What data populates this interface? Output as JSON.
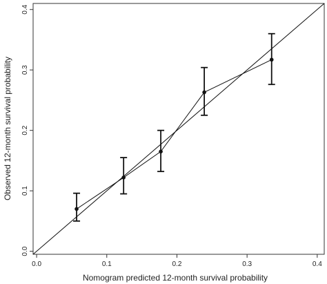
{
  "chart_data": {
    "type": "scatter",
    "title": "",
    "xlabel": "Nomogram predicted 12-month survival probability",
    "ylabel": "Observed 12-month survival probability",
    "xlim": [
      -0.005,
      0.41
    ],
    "ylim": [
      -0.005,
      0.41
    ],
    "x_ticks": [
      {
        "value": 0.0,
        "label": "0.0"
      },
      {
        "value": 0.1,
        "label": "0.1"
      },
      {
        "value": 0.2,
        "label": "0.2"
      },
      {
        "value": 0.3,
        "label": "0.3"
      },
      {
        "value": 0.4,
        "label": "0.4"
      }
    ],
    "y_ticks": [
      {
        "value": 0.0,
        "label": "0.0"
      },
      {
        "value": 0.1,
        "label": "0.1"
      },
      {
        "value": 0.2,
        "label": "0.2"
      },
      {
        "value": 0.3,
        "label": "0.3"
      },
      {
        "value": 0.4,
        "label": "0.4"
      }
    ],
    "grid": false,
    "reference_line": {
      "from": [
        -0.005,
        -0.005
      ],
      "to": [
        0.41,
        0.41
      ]
    },
    "series": [
      {
        "points": [
          {
            "x": 0.057,
            "y": 0.07,
            "lower": 0.05,
            "upper": 0.096
          },
          {
            "x": 0.124,
            "y": 0.122,
            "lower": 0.095,
            "upper": 0.155
          },
          {
            "x": 0.177,
            "y": 0.165,
            "lower": 0.132,
            "upper": 0.2
          },
          {
            "x": 0.239,
            "y": 0.263,
            "lower": 0.225,
            "upper": 0.304
          },
          {
            "x": 0.335,
            "y": 0.317,
            "lower": 0.276,
            "upper": 0.36
          }
        ]
      }
    ],
    "colors": {
      "line": "#111111",
      "axis": "#333333"
    }
  }
}
